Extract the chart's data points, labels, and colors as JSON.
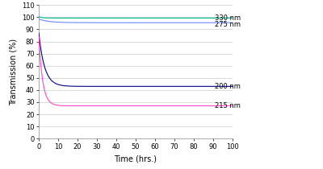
{
  "xlabel": "Time (hrs.)",
  "ylabel": "Transmission (%)",
  "xlim": [
    0,
    100
  ],
  "ylim": [
    0,
    110
  ],
  "yticks": [
    0,
    10,
    20,
    30,
    40,
    50,
    60,
    70,
    80,
    90,
    100,
    110
  ],
  "xticks": [
    0,
    10,
    20,
    30,
    40,
    50,
    60,
    70,
    80,
    90,
    100
  ],
  "series": [
    {
      "label": "330 nm",
      "color": "#00BB99",
      "start": 100.5,
      "end": 99.3,
      "tau": 1.5,
      "ann_y": 99.3,
      "ann_y2": 97.0
    },
    {
      "label": "275 nm",
      "color": "#6688FF",
      "start": 98.5,
      "end": 95.5,
      "tau": 5.0,
      "ann_y": 96.0,
      "ann_y2": 94.5
    },
    {
      "label": "200 nm",
      "color": "#000088",
      "start": 87.0,
      "end": 43.0,
      "tau": 3.0,
      "ann_y": 43.0,
      "ann_y2": 43.0
    },
    {
      "label": "215 nm",
      "color": "#FF44CC",
      "start": 84.0,
      "end": 27.0,
      "tau": 2.0,
      "ann_y": 27.0,
      "ann_y2": 27.0
    }
  ],
  "background_color": "#FFFFFF",
  "grid_color": "#CCCCCC",
  "label_fontsize": 7,
  "tick_fontsize": 6,
  "annotation_fontsize": 6
}
